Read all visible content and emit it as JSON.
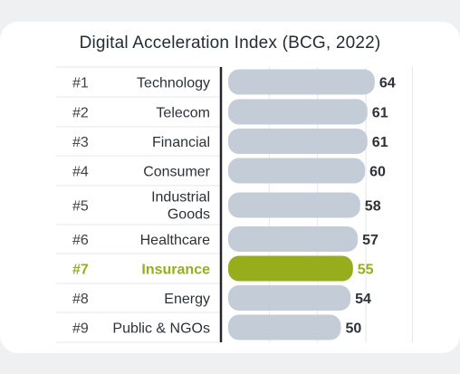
{
  "chart_data": {
    "type": "bar",
    "orientation": "horizontal",
    "title": "Digital Acceleration Index (BCG, 2022)",
    "ranks": [
      "#1",
      "#2",
      "#3",
      "#4",
      "#5",
      "#6",
      "#7",
      "#8",
      "#9"
    ],
    "categories": [
      "Technology",
      "Telecom",
      "Financial",
      "Consumer",
      "Industrial Goods",
      "Healthcare",
      "Insurance",
      "Energy",
      "Public & NGOs"
    ],
    "values": [
      64,
      61,
      61,
      60,
      58,
      57,
      55,
      54,
      50
    ],
    "highlight_index": 6,
    "xlim": [
      0,
      100
    ],
    "grid": true,
    "legend": "none"
  },
  "colors": {
    "bar": "#c3ccd7",
    "highlight": "#97ad1c",
    "axis": "#22272c",
    "grid": "#e4e7eb",
    "row_divider": "#e4e7eb"
  }
}
